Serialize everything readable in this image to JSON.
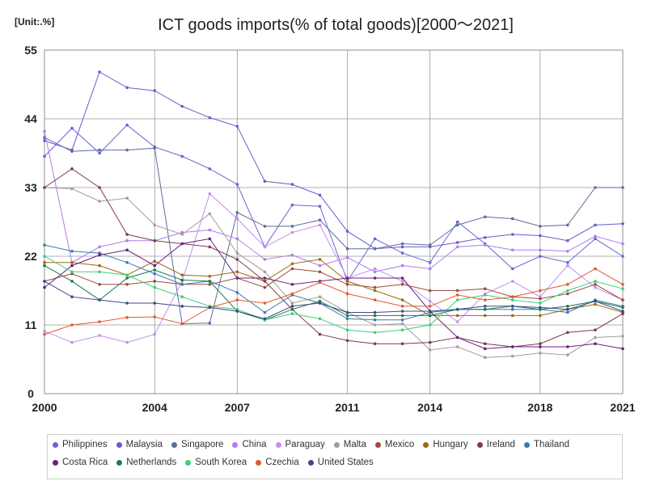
{
  "unit_label": "[Unit:.%]",
  "chart_data": {
    "type": "line",
    "title": "ICT goods imports(% of total goods)[2000～2021]",
    "xlabel": "",
    "ylabel": "",
    "x": [
      2000,
      2001,
      2002,
      2003,
      2004,
      2005,
      2006,
      2007,
      2008,
      2009,
      2010,
      2011,
      2012,
      2013,
      2014,
      2015,
      2016,
      2017,
      2018,
      2019,
      2020,
      2021
    ],
    "x_ticks": [
      2000,
      2004,
      2007,
      2011,
      2014,
      2018,
      2021
    ],
    "x_tick_labels": [
      "2000",
      "2004",
      "2007",
      "2011",
      "2014",
      "2018",
      "2021"
    ],
    "ylim": [
      0,
      55
    ],
    "y_ticks": [
      0,
      11,
      22,
      33,
      44,
      55
    ],
    "y_tick_labels": [
      "0",
      "11",
      "22",
      "33",
      "44",
      "55"
    ],
    "xlim": [
      2000,
      2021
    ],
    "grid": true,
    "legend_position": "bottom",
    "series": [
      {
        "name": "Philippines",
        "color": "#6a64d6",
        "values": [
          38.0,
          42.5,
          38.5,
          43.0,
          39.5,
          38.0,
          36.0,
          33.5,
          23.5,
          30.2,
          30.0,
          18.0,
          24.8,
          22.5,
          21.0,
          27.5,
          24.0,
          20.0,
          22.0,
          21.0,
          24.8,
          22.0
        ]
      },
      {
        "name": "Malaysia",
        "color": "#6c5ad0",
        "values": [
          40.5,
          39.0,
          51.5,
          49.0,
          48.5,
          46.0,
          44.2,
          42.8,
          34.0,
          33.5,
          31.8,
          26.0,
          23.2,
          23.5,
          23.5,
          24.2,
          25.0,
          25.5,
          25.3,
          24.5,
          27.0,
          27.2
        ]
      },
      {
        "name": "Singapore",
        "color": "#5a6e9c",
        "values": [
          41.0,
          38.8,
          39.0,
          39.0,
          39.3,
          11.2,
          11.3,
          29.0,
          26.8,
          26.8,
          27.8,
          23.2,
          23.2,
          24.0,
          23.8,
          27.0,
          28.3,
          28.0,
          26.8,
          27.0,
          33.0,
          33.0
        ]
      },
      {
        "name": "China",
        "color": "#b37be8",
        "values": [
          42.0,
          21.0,
          23.5,
          24.5,
          24.5,
          25.8,
          26.2,
          24.8,
          21.5,
          22.2,
          20.5,
          21.8,
          19.5,
          20.5,
          20.0,
          23.5,
          23.8,
          23.0,
          23.0,
          22.8,
          25.2,
          24.0
        ]
      },
      {
        "name": "Paraguay",
        "color": "#c48ff0",
        "values": [
          10.0,
          8.2,
          9.3,
          8.2,
          9.5,
          18.0,
          32.0,
          28.0,
          23.5,
          25.8,
          27.0,
          18.5,
          20.0,
          18.0,
          14.8,
          11.5,
          16.0,
          18.0,
          15.5,
          20.5,
          17.0,
          15.0
        ]
      },
      {
        "name": "Malta",
        "color": "#a89c96",
        "values": [
          33.0,
          32.8,
          30.8,
          31.3,
          27.0,
          25.5,
          28.8,
          22.5,
          19.5,
          14.5,
          15.5,
          13.0,
          11.0,
          11.2,
          7.0,
          7.5,
          5.8,
          6.0,
          6.5,
          6.2,
          9.0,
          9.2
        ]
      },
      {
        "name": "Mexico",
        "color": "#9c4a3c",
        "values": [
          18.0,
          19.2,
          17.5,
          17.5,
          18.0,
          17.5,
          17.5,
          18.5,
          17.0,
          20.0,
          19.5,
          17.5,
          17.0,
          17.5,
          16.5,
          16.5,
          16.8,
          15.5,
          15.2,
          16.0,
          17.5,
          15.0
        ]
      },
      {
        "name": "Hungary",
        "color": "#9c6a10",
        "values": [
          21.0,
          21.0,
          20.5,
          19.0,
          21.2,
          19.0,
          18.8,
          19.5,
          18.0,
          20.8,
          21.5,
          18.0,
          16.5,
          15.0,
          12.5,
          12.5,
          12.5,
          12.5,
          12.5,
          13.5,
          14.3,
          13.0
        ]
      },
      {
        "name": "Ireland",
        "color": "#7a3c4e",
        "values": [
          33.0,
          36.0,
          33.0,
          25.5,
          24.5,
          24.0,
          23.5,
          21.5,
          18.0,
          13.5,
          9.5,
          8.5,
          8.0,
          8.0,
          8.2,
          9.0,
          8.0,
          7.5,
          8.0,
          9.8,
          10.2,
          12.8
        ]
      },
      {
        "name": "Thailand",
        "color": "#3c7ab0",
        "values": [
          23.8,
          22.8,
          22.5,
          21.0,
          19.2,
          17.5,
          18.0,
          16.2,
          13.0,
          15.8,
          14.5,
          12.0,
          11.8,
          11.8,
          13.0,
          13.5,
          13.5,
          13.5,
          13.5,
          13.0,
          15.0,
          14.0
        ]
      },
      {
        "name": "Costa Rica",
        "color": "#6b1f7c",
        "values": [
          17.0,
          20.5,
          22.2,
          23.0,
          20.5,
          24.0,
          24.8,
          18.5,
          18.5,
          17.5,
          18.0,
          18.5,
          18.5,
          18.5,
          13.2,
          9.0,
          7.2,
          7.5,
          7.5,
          7.5,
          8.0,
          7.2
        ]
      },
      {
        "name": "Netherlands",
        "color": "#1e7a4a",
        "values": [
          20.5,
          18.0,
          15.0,
          18.5,
          19.8,
          18.2,
          18.0,
          13.2,
          11.8,
          13.5,
          14.8,
          12.5,
          12.5,
          12.5,
          12.5,
          13.5,
          13.5,
          14.0,
          13.5,
          14.0,
          14.8,
          13.8
        ]
      },
      {
        "name": "South Korea",
        "color": "#3cd07a",
        "values": [
          22.0,
          19.5,
          19.5,
          19.0,
          17.0,
          15.5,
          14.0,
          13.5,
          11.8,
          12.8,
          12.0,
          10.2,
          9.8,
          10.2,
          11.0,
          15.0,
          15.8,
          15.0,
          14.5,
          16.5,
          18.0,
          16.8
        ]
      },
      {
        "name": "Czechia",
        "color": "#e05a32",
        "values": [
          9.5,
          11.0,
          11.5,
          12.2,
          12.3,
          11.2,
          13.8,
          15.0,
          14.5,
          16.0,
          17.8,
          16.0,
          15.0,
          14.0,
          14.0,
          15.8,
          15.0,
          15.5,
          16.5,
          17.5,
          20.0,
          17.5
        ]
      },
      {
        "name": "United States",
        "color": "#3c4a8a",
        "values": [
          18.0,
          15.5,
          15.0,
          14.5,
          14.5,
          14.0,
          13.8,
          13.2,
          12.0,
          14.0,
          14.5,
          13.0,
          13.0,
          13.2,
          13.2,
          13.5,
          14.0,
          14.0,
          13.8,
          13.5,
          14.8,
          13.2
        ]
      }
    ]
  }
}
